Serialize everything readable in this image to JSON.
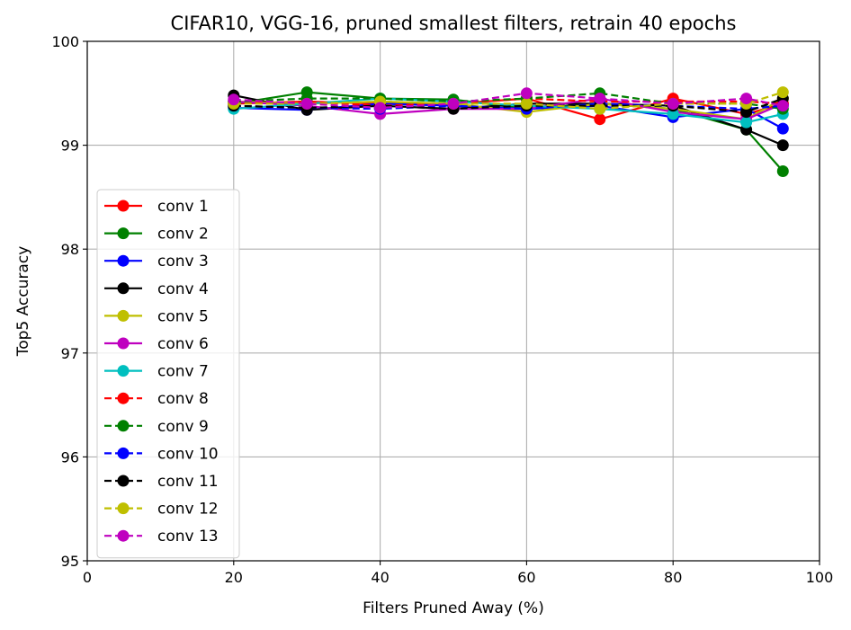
{
  "chart_data": {
    "type": "line",
    "title": "CIFAR10, VGG-16, pruned smallest filters, retrain 40 epochs",
    "xlabel": "Filters Pruned Away (%)",
    "ylabel": "Top5 Accuracy",
    "xlim": [
      0,
      100
    ],
    "ylim": [
      95,
      100
    ],
    "xticks": [
      0,
      20,
      40,
      60,
      80,
      100
    ],
    "yticks": [
      95,
      96,
      97,
      98,
      99,
      100
    ],
    "grid": true,
    "legend_position": "lower-left",
    "x": [
      20,
      30,
      40,
      50,
      60,
      70,
      80,
      90,
      95
    ],
    "series": [
      {
        "name": "conv 1",
        "color": "#ff0000",
        "dash": "solid",
        "values": [
          99.4,
          99.42,
          99.4,
          99.4,
          99.45,
          99.25,
          99.45,
          99.3,
          99.4
        ]
      },
      {
        "name": "conv 2",
        "color": "#008000",
        "dash": "solid",
        "values": [
          99.4,
          99.51,
          99.45,
          99.44,
          99.35,
          99.4,
          99.35,
          99.15,
          98.75
        ]
      },
      {
        "name": "conv 3",
        "color": "#0000ff",
        "dash": "solid",
        "values": [
          99.36,
          99.34,
          99.4,
          99.38,
          99.35,
          99.38,
          99.27,
          99.35,
          99.16
        ]
      },
      {
        "name": "conv 4",
        "color": "#000000",
        "dash": "solid",
        "values": [
          99.48,
          99.34,
          99.38,
          99.35,
          99.4,
          99.4,
          99.38,
          99.15,
          99.0
        ]
      },
      {
        "name": "conv 5",
        "color": "#bfbf00",
        "dash": "solid",
        "values": [
          99.42,
          99.4,
          99.42,
          99.4,
          99.32,
          99.4,
          99.35,
          99.25,
          99.45
        ]
      },
      {
        "name": "conv 6",
        "color": "#bf00bf",
        "dash": "solid",
        "values": [
          99.42,
          99.38,
          99.3,
          99.35,
          99.35,
          99.45,
          99.32,
          99.25,
          99.4
        ]
      },
      {
        "name": "conv 7",
        "color": "#00bfbf",
        "dash": "solid",
        "values": [
          99.35,
          99.4,
          99.45,
          99.42,
          99.38,
          99.35,
          99.3,
          99.22,
          99.3
        ]
      },
      {
        "name": "conv 8",
        "color": "#ff0000",
        "dash": "dashed",
        "values": [
          99.4,
          99.42,
          99.38,
          99.4,
          99.45,
          99.42,
          99.42,
          99.42,
          99.4
        ]
      },
      {
        "name": "conv 9",
        "color": "#008000",
        "dash": "dashed",
        "values": [
          99.42,
          99.45,
          99.45,
          99.42,
          99.45,
          99.5,
          99.4,
          99.4,
          99.35
        ]
      },
      {
        "name": "conv 10",
        "color": "#0000ff",
        "dash": "dashed",
        "values": [
          99.38,
          99.36,
          99.35,
          99.38,
          99.35,
          99.4,
          99.38,
          99.35,
          99.38
        ]
      },
      {
        "name": "conv 11",
        "color": "#000000",
        "dash": "dashed",
        "values": [
          99.38,
          99.36,
          99.38,
          99.35,
          99.38,
          99.38,
          99.38,
          99.32,
          99.45
        ]
      },
      {
        "name": "conv 12",
        "color": "#bfbf00",
        "dash": "dashed",
        "values": [
          99.4,
          99.4,
          99.42,
          99.4,
          99.4,
          99.35,
          99.4,
          99.4,
          99.51
        ]
      },
      {
        "name": "conv 13",
        "color": "#bf00bf",
        "dash": "dashed",
        "values": [
          99.44,
          99.4,
          99.36,
          99.4,
          99.5,
          99.45,
          99.4,
          99.45,
          99.38
        ]
      }
    ]
  }
}
